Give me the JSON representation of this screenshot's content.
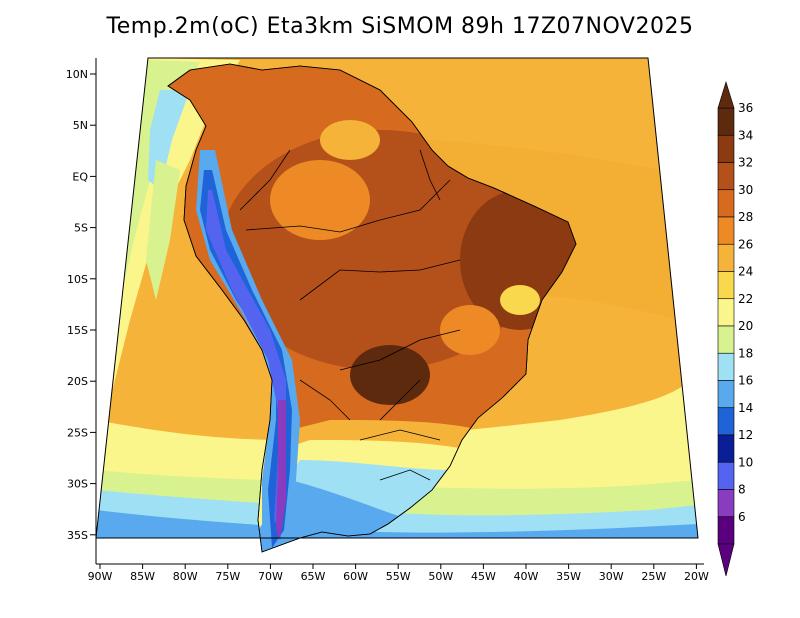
{
  "title": "Temp.2m(oC) Eta3km SiSMOM 89h 17Z07NOV2025",
  "lat_labels": [
    "10N",
    "5N",
    "EQ",
    "5S",
    "10S",
    "15S",
    "20S",
    "25S",
    "30S",
    "35S"
  ],
  "lon_labels": [
    "90W",
    "85W",
    "80W",
    "75W",
    "70W",
    "65W",
    "60W",
    "55W",
    "50W",
    "45W",
    "40W",
    "35W",
    "30W",
    "25W",
    "20W"
  ],
  "colorbar": {
    "labels": [
      "36",
      "34",
      "32",
      "30",
      "28",
      "26",
      "24",
      "22",
      "20",
      "18",
      "16",
      "14",
      "12",
      "10",
      "8",
      "6"
    ],
    "colors": [
      "#5e2a0e",
      "#8b3a12",
      "#b4501a",
      "#d66a1e",
      "#ee8a25",
      "#f6b33a",
      "#f9d84e",
      "#fbf68c",
      "#d7f28e",
      "#9fe0f4",
      "#58a9ee",
      "#1f63d8",
      "#0a1e98",
      "#5464f0",
      "#8a3cc0",
      "#5a007e"
    ]
  }
}
